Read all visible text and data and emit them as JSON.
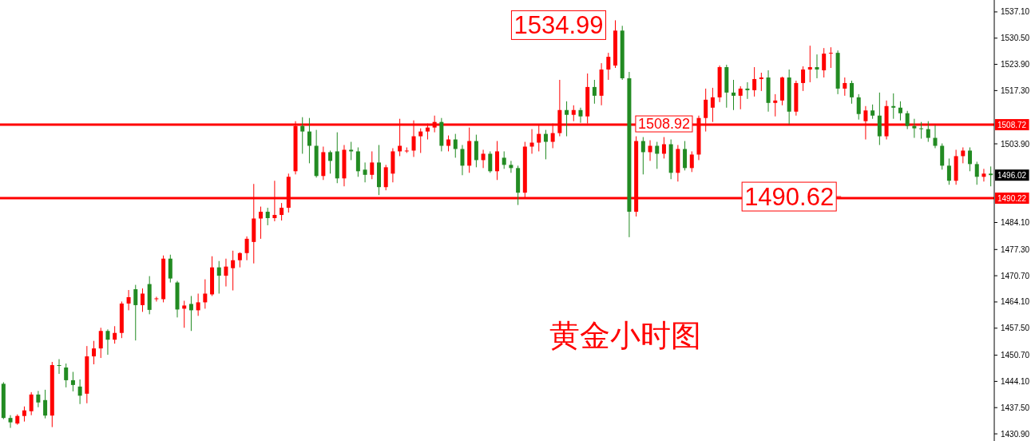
{
  "chart_data": {
    "type": "candlestick",
    "tick_labels": "y",
    "colors": [
      "#228b22",
      "#228b22",
      "#ff0000",
      "#ff0000",
      "#ff0000",
      "#228b22",
      "#228b22",
      "#ff0000",
      "#228b22",
      "#228b22",
      "#228b22",
      "#228b22",
      "#ff0000",
      "#ff0000",
      "#ff0000",
      "#228b22",
      "#ff0000",
      "#ff0000",
      "#ff0000",
      "#228b22",
      "#ff0000",
      "#228b22",
      "#ff0000",
      "#ff0000",
      "#228b22",
      "#228b22",
      "#ff0000",
      "#228b22",
      "#ff0000",
      "#ff0000",
      "#ff0000",
      "#228b22",
      "#ff0000",
      "#ff0000",
      "#ff0000",
      "#ff0000",
      "#ff0000",
      "#ff0000",
      "#228b22",
      "#ff0000",
      "#ff0000",
      "#ff0000",
      "#ff0000",
      "#228b22",
      "#228b22",
      "#228b22",
      "#ff0000",
      "#228b22",
      "#228b22",
      "#ff0000",
      "#228b22",
      "#228b22",
      "#228b22",
      "#ff0000",
      "#228b22",
      "#ff0000",
      "#ff0000",
      "#ff0000",
      "#ff0000",
      "#ff0000",
      "#ff0000",
      "#ff0000",
      "#ff0000",
      "#228b22",
      "#ff0000",
      "#228b22",
      "#228b22",
      "#ff0000",
      "#228b22",
      "#ff0000",
      "#228b22",
      "#ff0000",
      "#228b22",
      "#228b22",
      "#228b22",
      "#ff0000",
      "#ff0000",
      "#ff0000",
      "#228b22",
      "#ff0000",
      "#ff0000",
      "#228b22",
      "#ff0000",
      "#228b22",
      "#ff0000",
      "#228b22",
      "#ff0000",
      "#ff0000",
      "#ff0000",
      "#228b22",
      "#228b22",
      "#ff0000",
      "#228b22",
      "#ff0000",
      "#228b22",
      "#ff0000",
      "#228b22",
      "#ff0000",
      "#228b22",
      "#ff0000",
      "#ff0000",
      "#ff0000",
      "#ff0000",
      "#ff0000",
      "#228b22",
      "#228b22",
      "#ff0000",
      "#228b22",
      "#ff0000",
      "#ff0000",
      "#228b22",
      "#ff0000",
      "#ff0000",
      "#228b22",
      "#ff0000",
      "#ff0000",
      "#ff0000",
      "#228b22",
      "#ff0000",
      "#ff0000",
      "#228b22",
      "#ff0000",
      "#228b22",
      "#228b22",
      "#ff0000",
      "#228b22",
      "#228b22",
      "#ff0000",
      "#228b22",
      "#228b22",
      "#228b22",
      "#228b22",
      "#228b22",
      "#228b22",
      "#228b22",
      "#228b22",
      "#228b22",
      "#ff0000",
      "#ff0000",
      "#228b22",
      "#228b22",
      "#ff0000",
      "#228b22"
    ],
    "ylim": [
      1429.1,
      1540.1
    ],
    "yticks": [
      {
        "value": 1430.9,
        "label": "1430.90"
      },
      {
        "value": 1437.5,
        "label": "1437.50"
      },
      {
        "value": 1444.1,
        "label": "1444.10"
      },
      {
        "value": 1450.7,
        "label": "1450.70"
      },
      {
        "value": 1457.5,
        "label": "1457.50"
      },
      {
        "value": 1464.1,
        "label": "1464.10"
      },
      {
        "value": 1470.7,
        "label": "1470.70"
      },
      {
        "value": 1477.3,
        "label": "1477.30"
      },
      {
        "value": 1484.1,
        "label": "1484.10"
      },
      {
        "value": 1503.9,
        "label": "1503.90"
      },
      {
        "value": 1517.3,
        "label": "1517.30"
      },
      {
        "value": 1523.9,
        "label": "1523.90"
      },
      {
        "value": 1530.5,
        "label": "1530.50"
      },
      {
        "value": 1537.1,
        "label": "1537.10"
      }
    ],
    "ref_lines": [
      {
        "axis": "y",
        "value": 1508.72,
        "label": "1508.72",
        "color": "#ff0000"
      },
      {
        "axis": "y",
        "value": 1490.22,
        "label": "1490.22",
        "color": "#ff0000"
      }
    ],
    "annotations": [
      "1534.99",
      {
        "text": "1508.92",
        "y": 1508.92
      },
      {
        "text": "1490.62",
        "y": 1490.62
      },
      {
        "text": "1496.02",
        "y": 1496.02
      },
      "黄金小时图"
    ],
    "categories": [
      null,
      null,
      null,
      null,
      null,
      null,
      null,
      null,
      null,
      null,
      null,
      null,
      null,
      null,
      null,
      null,
      null,
      null,
      null,
      null,
      null,
      null,
      null,
      null,
      null,
      null,
      null,
      null,
      null,
      null,
      null,
      null,
      null,
      null,
      null,
      null,
      null,
      null,
      null,
      null,
      null,
      null,
      null,
      null,
      null,
      null,
      null,
      null,
      null,
      null,
      null,
      null,
      null,
      null,
      null,
      null,
      null,
      null,
      null,
      null,
      null,
      null,
      null,
      null,
      null,
      null,
      null,
      null,
      null,
      null,
      null,
      null,
      null,
      null,
      null,
      null,
      null,
      null,
      null,
      null,
      null,
      null,
      null,
      null,
      null,
      null,
      null,
      null,
      null,
      null,
      null,
      null,
      null,
      null,
      null,
      null,
      null,
      null,
      null,
      null,
      null,
      null,
      null,
      null,
      null,
      null,
      null,
      null,
      null,
      null,
      null,
      null,
      null,
      null,
      null,
      null,
      null,
      null,
      null,
      null,
      null,
      null,
      null,
      null,
      null,
      null,
      null,
      null,
      null,
      null,
      null,
      null,
      null,
      null,
      null,
      null,
      null,
      null,
      null,
      null,
      null,
      null,
      null
    ],
    "ohlc": [
      [
        1443.5,
        1443.9,
        1434.6,
        1434.9
      ],
      [
        1434.9,
        1435.6,
        1432.4,
        1433.8
      ],
      [
        1433.5,
        1435.8,
        1433.2,
        1435.4
      ],
      [
        1435.4,
        1437.8,
        1434.0,
        1436.8
      ],
      [
        1436.6,
        1441.4,
        1435.6,
        1440.8
      ],
      [
        1440.8,
        1441.7,
        1437.6,
        1438.8
      ],
      [
        1439.4,
        1442.0,
        1434.8,
        1435.5
      ],
      [
        1435.5,
        1449.0,
        1432.6,
        1448.2
      ],
      [
        1448.2,
        1449.7,
        1446.0,
        1448.0
      ],
      [
        1447.6,
        1448.6,
        1442.6,
        1444.4
      ],
      [
        1444.4,
        1446.5,
        1441.6,
        1443.2
      ],
      [
        1442.8,
        1444.6,
        1438.4,
        1440.5
      ],
      [
        1441.0,
        1453.0,
        1438.6,
        1450.4
      ],
      [
        1450.4,
        1454.3,
        1448.4,
        1452.4
      ],
      [
        1452.4,
        1457.6,
        1450.0,
        1456.8
      ],
      [
        1456.8,
        1457.2,
        1450.8,
        1454.6
      ],
      [
        1454.6,
        1458.0,
        1453.6,
        1456.3
      ],
      [
        1456.3,
        1464.2,
        1455.0,
        1463.7
      ],
      [
        1463.7,
        1467.1,
        1462.0,
        1465.3
      ],
      [
        1467.3,
        1468.4,
        1454.4,
        1463.3
      ],
      [
        1463.3,
        1467.5,
        1461.6,
        1466.2
      ],
      [
        1468.6,
        1470.6,
        1461.0,
        1462.1
      ],
      [
        1464.8,
        1465.4,
        1464.2,
        1465.0
      ],
      [
        1464.8,
        1475.8,
        1464.0,
        1475.0
      ],
      [
        1475.0,
        1476.0,
        1469.0,
        1470.0
      ],
      [
        1469.0,
        1469.4,
        1460.2,
        1462.2
      ],
      [
        1462.4,
        1464.4,
        1457.6,
        1463.2
      ],
      [
        1463.6,
        1465.6,
        1456.8,
        1462.0
      ],
      [
        1462.0,
        1466.2,
        1460.6,
        1464.0
      ],
      [
        1464.0,
        1469.8,
        1462.4,
        1466.2
      ],
      [
        1466.0,
        1475.6,
        1465.6,
        1472.8
      ],
      [
        1472.8,
        1474.4,
        1466.2,
        1470.7
      ],
      [
        1470.7,
        1475.0,
        1468.0,
        1473.0
      ],
      [
        1472.6,
        1477.0,
        1467.0,
        1474.6
      ],
      [
        1474.6,
        1476.6,
        1472.8,
        1476.4
      ],
      [
        1476.4,
        1480.6,
        1474.6,
        1480.0
      ],
      [
        1479.2,
        1493.8,
        1473.8,
        1485.1
      ],
      [
        1485.1,
        1488.1,
        1480.0,
        1486.8
      ],
      [
        1486.8,
        1487.8,
        1483.4,
        1485.2
      ],
      [
        1485.2,
        1494.6,
        1484.4,
        1486.0
      ],
      [
        1486.0,
        1489.0,
        1484.6,
        1487.8
      ],
      [
        1487.8,
        1496.4,
        1486.6,
        1495.6
      ],
      [
        1497.0,
        1509.6,
        1496.2,
        1508.4
      ],
      [
        1508.4,
        1510.6,
        1501.4,
        1507.0
      ],
      [
        1507.0,
        1510.4,
        1499.0,
        1503.4
      ],
      [
        1503.4,
        1507.4,
        1495.4,
        1495.8
      ],
      [
        1495.8,
        1503.2,
        1494.8,
        1501.8
      ],
      [
        1501.8,
        1502.2,
        1496.4,
        1499.6
      ],
      [
        1502.0,
        1506.8,
        1494.0,
        1495.2
      ],
      [
        1495.2,
        1503.6,
        1493.2,
        1502.4
      ],
      [
        1502.4,
        1504.4,
        1499.8,
        1502.0
      ],
      [
        1502.0,
        1503.0,
        1495.6,
        1497.0
      ],
      [
        1497.4,
        1499.2,
        1494.2,
        1496.1
      ],
      [
        1496.1,
        1502.0,
        1495.0,
        1499.2
      ],
      [
        1499.2,
        1503.6,
        1491.0,
        1493.0
      ],
      [
        1493.0,
        1498.6,
        1492.2,
        1498.0
      ],
      [
        1496.4,
        1502.8,
        1494.2,
        1502.0
      ],
      [
        1502.0,
        1510.2,
        1500.8,
        1503.4
      ],
      [
        1502.0,
        1503.0,
        1501.6,
        1502.2
      ],
      [
        1502.2,
        1509.8,
        1500.6,
        1505.8
      ],
      [
        1505.8,
        1507.8,
        1501.6,
        1507.0
      ],
      [
        1507.0,
        1509.0,
        1505.0,
        1508.0
      ],
      [
        1508.0,
        1511.0,
        1506.8,
        1509.4
      ],
      [
        1509.4,
        1510.4,
        1502.0,
        1503.4
      ],
      [
        1503.4,
        1506.0,
        1502.0,
        1505.0
      ],
      [
        1505.0,
        1506.4,
        1500.4,
        1502.6
      ],
      [
        1502.6,
        1503.6,
        1496.0,
        1498.4
      ],
      [
        1498.4,
        1508.0,
        1496.6,
        1504.6
      ],
      [
        1504.6,
        1506.2,
        1498.0,
        1499.8
      ],
      [
        1499.8,
        1502.4,
        1497.8,
        1501.4
      ],
      [
        1501.4,
        1502.0,
        1496.6,
        1497.0
      ],
      [
        1497.0,
        1504.6,
        1494.8,
        1502.0
      ],
      [
        1500.4,
        1502.0,
        1497.6,
        1498.6
      ],
      [
        1498.6,
        1499.6,
        1496.6,
        1497.8
      ],
      [
        1497.8,
        1498.4,
        1488.5,
        1491.6
      ],
      [
        1491.6,
        1504.4,
        1490.4,
        1503.2
      ],
      [
        1503.2,
        1507.6,
        1501.4,
        1504.2
      ],
      [
        1504.2,
        1508.6,
        1502.0,
        1506.4
      ],
      [
        1506.4,
        1507.4,
        1500.0,
        1504.4
      ],
      [
        1504.4,
        1509.0,
        1502.8,
        1506.6
      ],
      [
        1506.6,
        1520.0,
        1505.8,
        1512.4
      ],
      [
        1512.4,
        1514.6,
        1505.8,
        1511.2
      ],
      [
        1511.2,
        1513.6,
        1509.6,
        1512.4
      ],
      [
        1512.4,
        1513.0,
        1509.2,
        1510.8
      ],
      [
        1510.8,
        1521.6,
        1509.0,
        1518.2
      ],
      [
        1518.2,
        1520.0,
        1514.0,
        1516.0
      ],
      [
        1516.0,
        1524.2,
        1513.6,
        1522.6
      ],
      [
        1522.6,
        1526.8,
        1520.0,
        1525.8
      ],
      [
        1523.6,
        1534.99,
        1523.0,
        1532.4
      ],
      [
        1532.4,
        1533.6,
        1520.0,
        1520.4
      ],
      [
        1520.4,
        1522.0,
        1480.4,
        1486.8
      ],
      [
        1486.8,
        1505.8,
        1485.6,
        1504.6
      ],
      [
        1504.6,
        1505.6,
        1496.2,
        1501.8
      ],
      [
        1501.8,
        1504.8,
        1499.6,
        1503.4
      ],
      [
        1503.4,
        1504.4,
        1497.6,
        1501.4
      ],
      [
        1501.4,
        1505.6,
        1500.2,
        1503.8
      ],
      [
        1503.8,
        1505.0,
        1495.0,
        1496.6
      ],
      [
        1496.6,
        1503.6,
        1494.4,
        1502.6
      ],
      [
        1502.6,
        1504.6,
        1497.2,
        1497.8
      ],
      [
        1497.8,
        1502.0,
        1496.8,
        1501.2
      ],
      [
        1501.2,
        1511.0,
        1499.8,
        1510.4
      ],
      [
        1510.4,
        1517.8,
        1507.0,
        1515.0
      ],
      [
        1513.0,
        1518.0,
        1509.4,
        1515.6
      ],
      [
        1515.6,
        1523.6,
        1514.4,
        1523.2
      ],
      [
        1523.2,
        1523.8,
        1513.0,
        1516.8
      ],
      [
        1516.8,
        1520.0,
        1512.4,
        1516.0
      ],
      [
        1516.0,
        1518.4,
        1512.6,
        1517.8
      ],
      [
        1517.8,
        1519.4,
        1515.2,
        1517.4
      ],
      [
        1517.4,
        1523.2,
        1515.8,
        1520.2
      ],
      [
        1520.2,
        1521.8,
        1517.2,
        1520.6
      ],
      [
        1520.6,
        1522.4,
        1512.0,
        1514.2
      ],
      [
        1514.2,
        1516.4,
        1510.8,
        1514.8
      ],
      [
        1514.8,
        1520.8,
        1513.6,
        1520.6
      ],
      [
        1520.6,
        1522.6,
        1508.8,
        1512.0
      ],
      [
        1512.0,
        1519.8,
        1511.0,
        1519.2
      ],
      [
        1519.2,
        1523.4,
        1517.2,
        1522.6
      ],
      [
        1522.6,
        1528.6,
        1519.4,
        1523.2
      ],
      [
        1523.2,
        1526.4,
        1520.4,
        1522.6
      ],
      [
        1522.4,
        1528.0,
        1520.6,
        1526.6
      ],
      [
        1526.6,
        1528.2,
        1523.0,
        1526.8
      ],
      [
        1526.8,
        1527.4,
        1516.4,
        1517.8
      ],
      [
        1517.8,
        1520.6,
        1516.0,
        1519.2
      ],
      [
        1519.2,
        1519.8,
        1514.0,
        1515.6
      ],
      [
        1515.6,
        1516.4,
        1510.0,
        1511.4
      ],
      [
        1509.6,
        1513.4,
        1505.0,
        1512.3
      ],
      [
        1512.3,
        1513.8,
        1510.2,
        1511.0
      ],
      [
        1511.0,
        1516.8,
        1503.6,
        1505.8
      ],
      [
        1505.8,
        1514.8,
        1505.0,
        1513.4
      ],
      [
        1513.4,
        1516.6,
        1510.2,
        1513.0
      ],
      [
        1513.0,
        1514.6,
        1509.8,
        1511.6
      ],
      [
        1511.6,
        1512.2,
        1507.6,
        1508.4
      ],
      [
        1508.4,
        1510.2,
        1505.4,
        1507.8
      ],
      [
        1507.8,
        1509.4,
        1505.2,
        1507.6
      ],
      [
        1507.6,
        1509.6,
        1504.4,
        1505.4
      ],
      [
        1505.4,
        1508.6,
        1502.8,
        1503.4
      ],
      [
        1503.4,
        1504.0,
        1497.4,
        1498.4
      ],
      [
        1498.4,
        1500.2,
        1493.6,
        1494.6
      ],
      [
        1494.6,
        1502.4,
        1493.6,
        1500.8
      ],
      [
        1500.8,
        1503.0,
        1499.0,
        1502.2
      ],
      [
        1502.2,
        1503.0,
        1497.0,
        1498.8
      ],
      [
        1498.8,
        1499.4,
        1493.6,
        1495.6
      ],
      [
        1495.6,
        1497.6,
        1494.4,
        1496.4
      ],
      [
        1496.4,
        1498.2,
        1493.2,
        1496.02
      ]
    ]
  }
}
